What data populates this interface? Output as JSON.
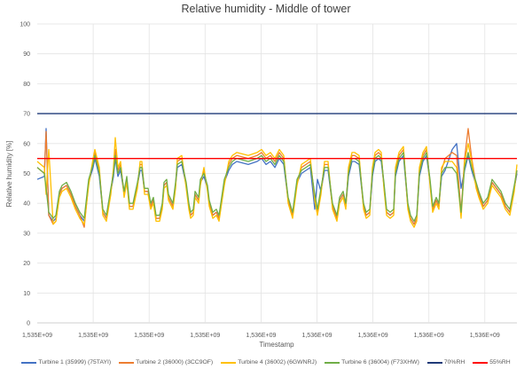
{
  "chart_data": {
    "type": "line",
    "title": "Relative humidity - Middle of tower",
    "xlabel": "Timestamp",
    "ylabel": "Relative humidity [%]",
    "ylim": [
      0,
      100
    ],
    "y_ticks": [
      0,
      10,
      20,
      30,
      40,
      50,
      60,
      70,
      80,
      90,
      100
    ],
    "x_tick_labels": [
      "1,535E+09",
      "1,535E+09",
      "1,535E+09",
      "1,535E+09",
      "1,536E+09",
      "1,536E+09",
      "1,536E+09",
      "1,536E+09",
      "1,536E+09"
    ],
    "grid": true,
    "legend_position": "bottom",
    "x_sample_range": [
      0,
      541
    ],
    "x": [
      0,
      8,
      10,
      13,
      18,
      21,
      25,
      28,
      33,
      38,
      43,
      48,
      53,
      58,
      63,
      65,
      70,
      74,
      78,
      83,
      86,
      88,
      91,
      94,
      98,
      101,
      104,
      108,
      113,
      116,
      118,
      121,
      125,
      128,
      131,
      134,
      138,
      141,
      143,
      146,
      148,
      153,
      156,
      158,
      163,
      168,
      171,
      173,
      176,
      178,
      182,
      184,
      188,
      192,
      194,
      198,
      202,
      205,
      211,
      216,
      220,
      225,
      238,
      248,
      253,
      258,
      263,
      268,
      273,
      278,
      283,
      288,
      293,
      298,
      303,
      308,
      313,
      316,
      320,
      324,
      328,
      333,
      338,
      341,
      345,
      348,
      351,
      355,
      358,
      363,
      368,
      371,
      375,
      378,
      381,
      385,
      388,
      391,
      394,
      398,
      402,
      404,
      408,
      413,
      418,
      421,
      425,
      428,
      431,
      435,
      439,
      443,
      446,
      450,
      453,
      456,
      460,
      468,
      473,
      478,
      482,
      486,
      490,
      495,
      498,
      503,
      508,
      513,
      518,
      523,
      528,
      533,
      538,
      541
    ],
    "series": [
      {
        "name": "Turbine 1 (35999) (75TAYI)",
        "color": "#4472C4",
        "values": [
          48,
          49,
          65,
          36,
          34,
          35,
          43,
          45,
          46,
          43,
          39,
          36,
          34,
          47,
          52,
          55,
          49,
          37,
          35,
          44,
          49,
          55,
          49,
          51,
          43,
          48,
          39,
          39,
          46,
          51,
          51,
          44,
          44,
          39,
          41,
          35,
          35,
          39,
          46,
          47,
          42,
          39,
          46,
          52,
          53,
          46,
          39,
          36,
          37,
          43,
          41,
          47,
          49,
          45,
          40,
          36,
          37,
          35,
          47,
          51,
          53,
          54,
          53,
          54,
          55,
          53,
          54,
          52,
          55,
          53,
          41,
          36,
          47,
          50,
          51,
          52,
          38,
          48,
          44,
          51,
          51,
          39,
          35,
          41,
          43,
          39,
          49,
          54,
          54,
          53,
          39,
          36,
          37,
          49,
          54,
          55,
          54,
          46,
          37,
          36,
          37,
          49,
          54,
          56,
          39,
          35,
          33,
          35,
          49,
          54,
          56,
          47,
          38,
          41,
          39,
          49,
          51,
          58,
          60,
          45,
          51,
          56,
          51,
          46,
          43,
          39,
          41,
          47,
          45,
          43,
          39,
          37,
          45,
          50
        ]
      },
      {
        "name": "Turbine 2 (36000) (3CC9OF)",
        "color": "#ED7D31",
        "values": [
          52,
          50,
          64,
          36,
          33,
          34,
          43,
          45,
          46,
          43,
          39,
          36,
          32,
          47,
          54,
          57,
          51,
          37,
          35,
          44,
          51,
          58,
          51,
          53,
          43,
          48,
          39,
          39,
          46,
          53,
          53,
          44,
          44,
          39,
          41,
          35,
          35,
          39,
          46,
          47,
          42,
          39,
          46,
          54,
          55,
          46,
          39,
          36,
          37,
          43,
          41,
          47,
          51,
          45,
          40,
          36,
          37,
          35,
          47,
          53,
          55,
          56,
          55,
          56,
          57,
          55,
          56,
          54,
          57,
          55,
          41,
          36,
          47,
          52,
          53,
          54,
          42,
          37,
          44,
          53,
          53,
          39,
          35,
          41,
          43,
          39,
          51,
          56,
          56,
          55,
          39,
          36,
          37,
          51,
          56,
          57,
          56,
          46,
          37,
          36,
          37,
          51,
          56,
          58,
          39,
          35,
          33,
          35,
          51,
          56,
          58,
          47,
          38,
          41,
          39,
          51,
          55,
          57,
          56,
          37,
          55,
          65,
          55,
          46,
          43,
          39,
          41,
          47,
          45,
          43,
          39,
          37,
          45,
          51
        ]
      },
      {
        "name": "Turbine 4 (36002) (6GWNRJ)",
        "color": "#FFC000",
        "values": [
          54,
          52,
          43,
          58,
          33,
          34,
          42,
          44,
          45,
          42,
          38,
          35,
          33,
          46,
          55,
          58,
          52,
          36,
          34,
          43,
          52,
          62,
          52,
          54,
          42,
          47,
          38,
          38,
          45,
          54,
          54,
          43,
          43,
          38,
          40,
          34,
          34,
          38,
          45,
          46,
          41,
          38,
          45,
          55,
          56,
          45,
          38,
          35,
          36,
          42,
          40,
          46,
          52,
          44,
          39,
          35,
          36,
          34,
          46,
          54,
          56,
          57,
          56,
          57,
          58,
          56,
          57,
          55,
          58,
          56,
          40,
          35,
          46,
          53,
          54,
          55,
          41,
          36,
          43,
          54,
          54,
          38,
          34,
          40,
          42,
          38,
          52,
          57,
          57,
          56,
          38,
          35,
          36,
          52,
          57,
          58,
          57,
          45,
          36,
          35,
          36,
          52,
          57,
          59,
          38,
          34,
          32,
          34,
          52,
          57,
          59,
          46,
          37,
          40,
          38,
          52,
          54,
          54,
          52,
          35,
          54,
          60,
          54,
          45,
          42,
          38,
          40,
          46,
          44,
          42,
          38,
          36,
          44,
          53
        ]
      },
      {
        "name": "Turbine 6 (36004) (F73XHW)",
        "color": "#70AD47",
        "values": [
          52,
          50,
          45,
          37,
          35,
          36,
          44,
          46,
          47,
          44,
          40,
          37,
          35,
          48,
          53,
          56,
          50,
          38,
          36,
          45,
          50,
          56,
          50,
          52,
          44,
          49,
          40,
          40,
          47,
          52,
          52,
          45,
          45,
          40,
          42,
          36,
          36,
          40,
          47,
          48,
          43,
          40,
          47,
          53,
          54,
          47,
          40,
          37,
          38,
          44,
          42,
          48,
          50,
          46,
          41,
          37,
          38,
          36,
          48,
          52,
          54,
          55,
          54,
          55,
          56,
          54,
          55,
          53,
          56,
          54,
          42,
          37,
          48,
          51,
          52,
          53,
          43,
          38,
          45,
          52,
          52,
          40,
          36,
          42,
          44,
          40,
          50,
          55,
          55,
          54,
          40,
          37,
          38,
          50,
          55,
          56,
          55,
          47,
          38,
          37,
          38,
          50,
          55,
          57,
          40,
          36,
          34,
          36,
          50,
          55,
          57,
          48,
          39,
          42,
          40,
          50,
          52,
          52,
          50,
          37,
          52,
          57,
          52,
          47,
          44,
          40,
          42,
          48,
          46,
          44,
          40,
          38,
          46,
          51
        ]
      }
    ],
    "reference_lines": [
      {
        "name": "70%RH",
        "value": 70,
        "color": "#1F3A78"
      },
      {
        "name": "55%RH",
        "value": 55,
        "color": "#FF0000"
      }
    ]
  }
}
